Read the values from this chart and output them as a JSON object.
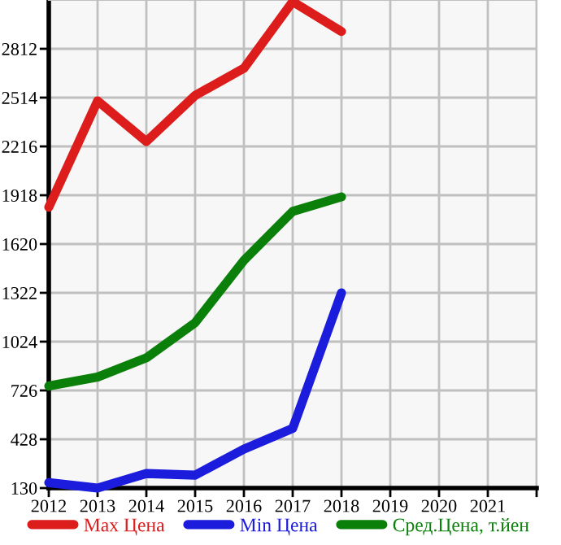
{
  "chart_data": {
    "type": "line",
    "x": [
      2012,
      2013,
      2014,
      2015,
      2016,
      2017,
      2018
    ],
    "series": [
      {
        "name": "Max Цена",
        "color": "#dd1c1c",
        "values": [
          1845,
          2494,
          2246,
          2527,
          2693,
          3100,
          2918
        ]
      },
      {
        "name": "Min Цена",
        "color": "#1c1cdd",
        "values": [
          163,
          130,
          219,
          209,
          368,
          494,
          1322
        ]
      },
      {
        "name": "Сред.Цена, т.йен",
        "color": "#0a800a",
        "values": [
          753,
          808,
          925,
          1140,
          1520,
          1819,
          1908
        ]
      }
    ],
    "xlim": [
      2012,
      2022
    ],
    "xticks": [
      2012,
      2013,
      2014,
      2015,
      2016,
      2017,
      2018,
      2019,
      2020,
      2021,
      {
        "value": 2022,
        "label": null
      }
    ],
    "ylim": [
      130,
      3110
    ],
    "yticks": [
      130,
      428,
      726,
      1024,
      1322,
      1620,
      1918,
      2216,
      2514,
      2812
    ],
    "grid": true,
    "legend": "bottom",
    "marker": "none",
    "line_style": "solid"
  }
}
